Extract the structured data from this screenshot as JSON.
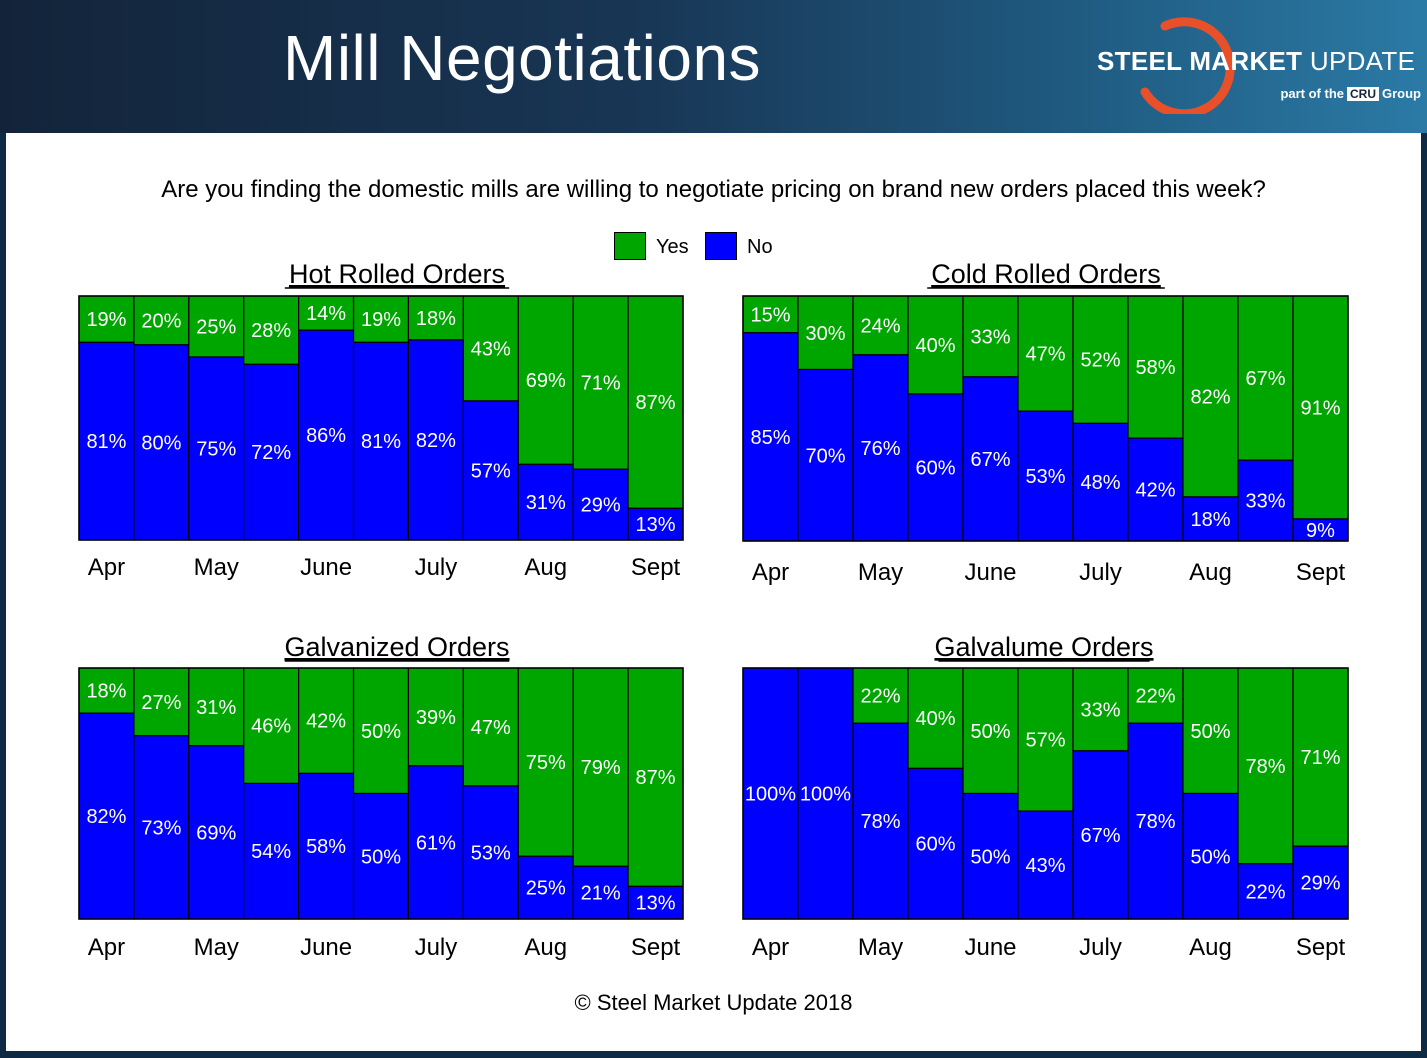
{
  "header": {
    "title": "Mill Negotiations",
    "logo_brand": "STEEL MARKET",
    "logo_brand2": "UPDATE",
    "logo_sub_pre": "part of the",
    "logo_sub_cru": "CRU",
    "logo_sub_post": "Group"
  },
  "question": "Are you finding the domestic mills are willing to negotiate pricing on brand new orders placed this week?",
  "legend": {
    "yes": "Yes",
    "no": "No"
  },
  "colors": {
    "yes": "#00a600",
    "no": "#0000ff"
  },
  "copyright": "© Steel Market Update 2018",
  "chart_data": [
    {
      "type": "bar",
      "stacked": true,
      "title": "Hot Rolled Orders",
      "xtick_labels": [
        "Apr",
        "May",
        "June",
        "July",
        "Aug",
        "Sept"
      ],
      "series": [
        {
          "name": "No",
          "values": [
            81,
            80,
            75,
            72,
            86,
            81,
            82,
            57,
            31,
            29,
            13
          ]
        },
        {
          "name": "Yes",
          "values": [
            19,
            20,
            25,
            28,
            14,
            19,
            18,
            43,
            69,
            71,
            87
          ]
        }
      ],
      "ylim": [
        0,
        100
      ]
    },
    {
      "type": "bar",
      "stacked": true,
      "title": "Cold Rolled Orders",
      "xtick_labels": [
        "Apr",
        "May",
        "June",
        "July",
        "Aug",
        "Sept"
      ],
      "series": [
        {
          "name": "No",
          "values": [
            85,
            70,
            76,
            60,
            67,
            53,
            48,
            42,
            18,
            33,
            9
          ]
        },
        {
          "name": "Yes",
          "values": [
            15,
            30,
            24,
            40,
            33,
            47,
            52,
            58,
            82,
            67,
            91
          ]
        }
      ],
      "ylim": [
        0,
        100
      ]
    },
    {
      "type": "bar",
      "stacked": true,
      "title": "Galvanized Orders",
      "xtick_labels": [
        "Apr",
        "May",
        "June",
        "July",
        "Aug",
        "Sept"
      ],
      "series": [
        {
          "name": "No",
          "values": [
            82,
            73,
            69,
            54,
            58,
            50,
            61,
            53,
            25,
            21,
            13
          ]
        },
        {
          "name": "Yes",
          "values": [
            18,
            27,
            31,
            46,
            42,
            50,
            39,
            47,
            75,
            79,
            87
          ]
        }
      ],
      "ylim": [
        0,
        100
      ]
    },
    {
      "type": "bar",
      "stacked": true,
      "title": "Galvalume Orders",
      "xtick_labels": [
        "Apr",
        "May",
        "June",
        "July",
        "Aug",
        "Sept"
      ],
      "series": [
        {
          "name": "No",
          "values": [
            100,
            100,
            78,
            60,
            50,
            43,
            67,
            78,
            50,
            22,
            29
          ]
        },
        {
          "name": "Yes",
          "values": [
            0,
            0,
            22,
            40,
            50,
            57,
            33,
            22,
            50,
            78,
            71
          ]
        }
      ],
      "ylim": [
        0,
        100
      ]
    }
  ]
}
